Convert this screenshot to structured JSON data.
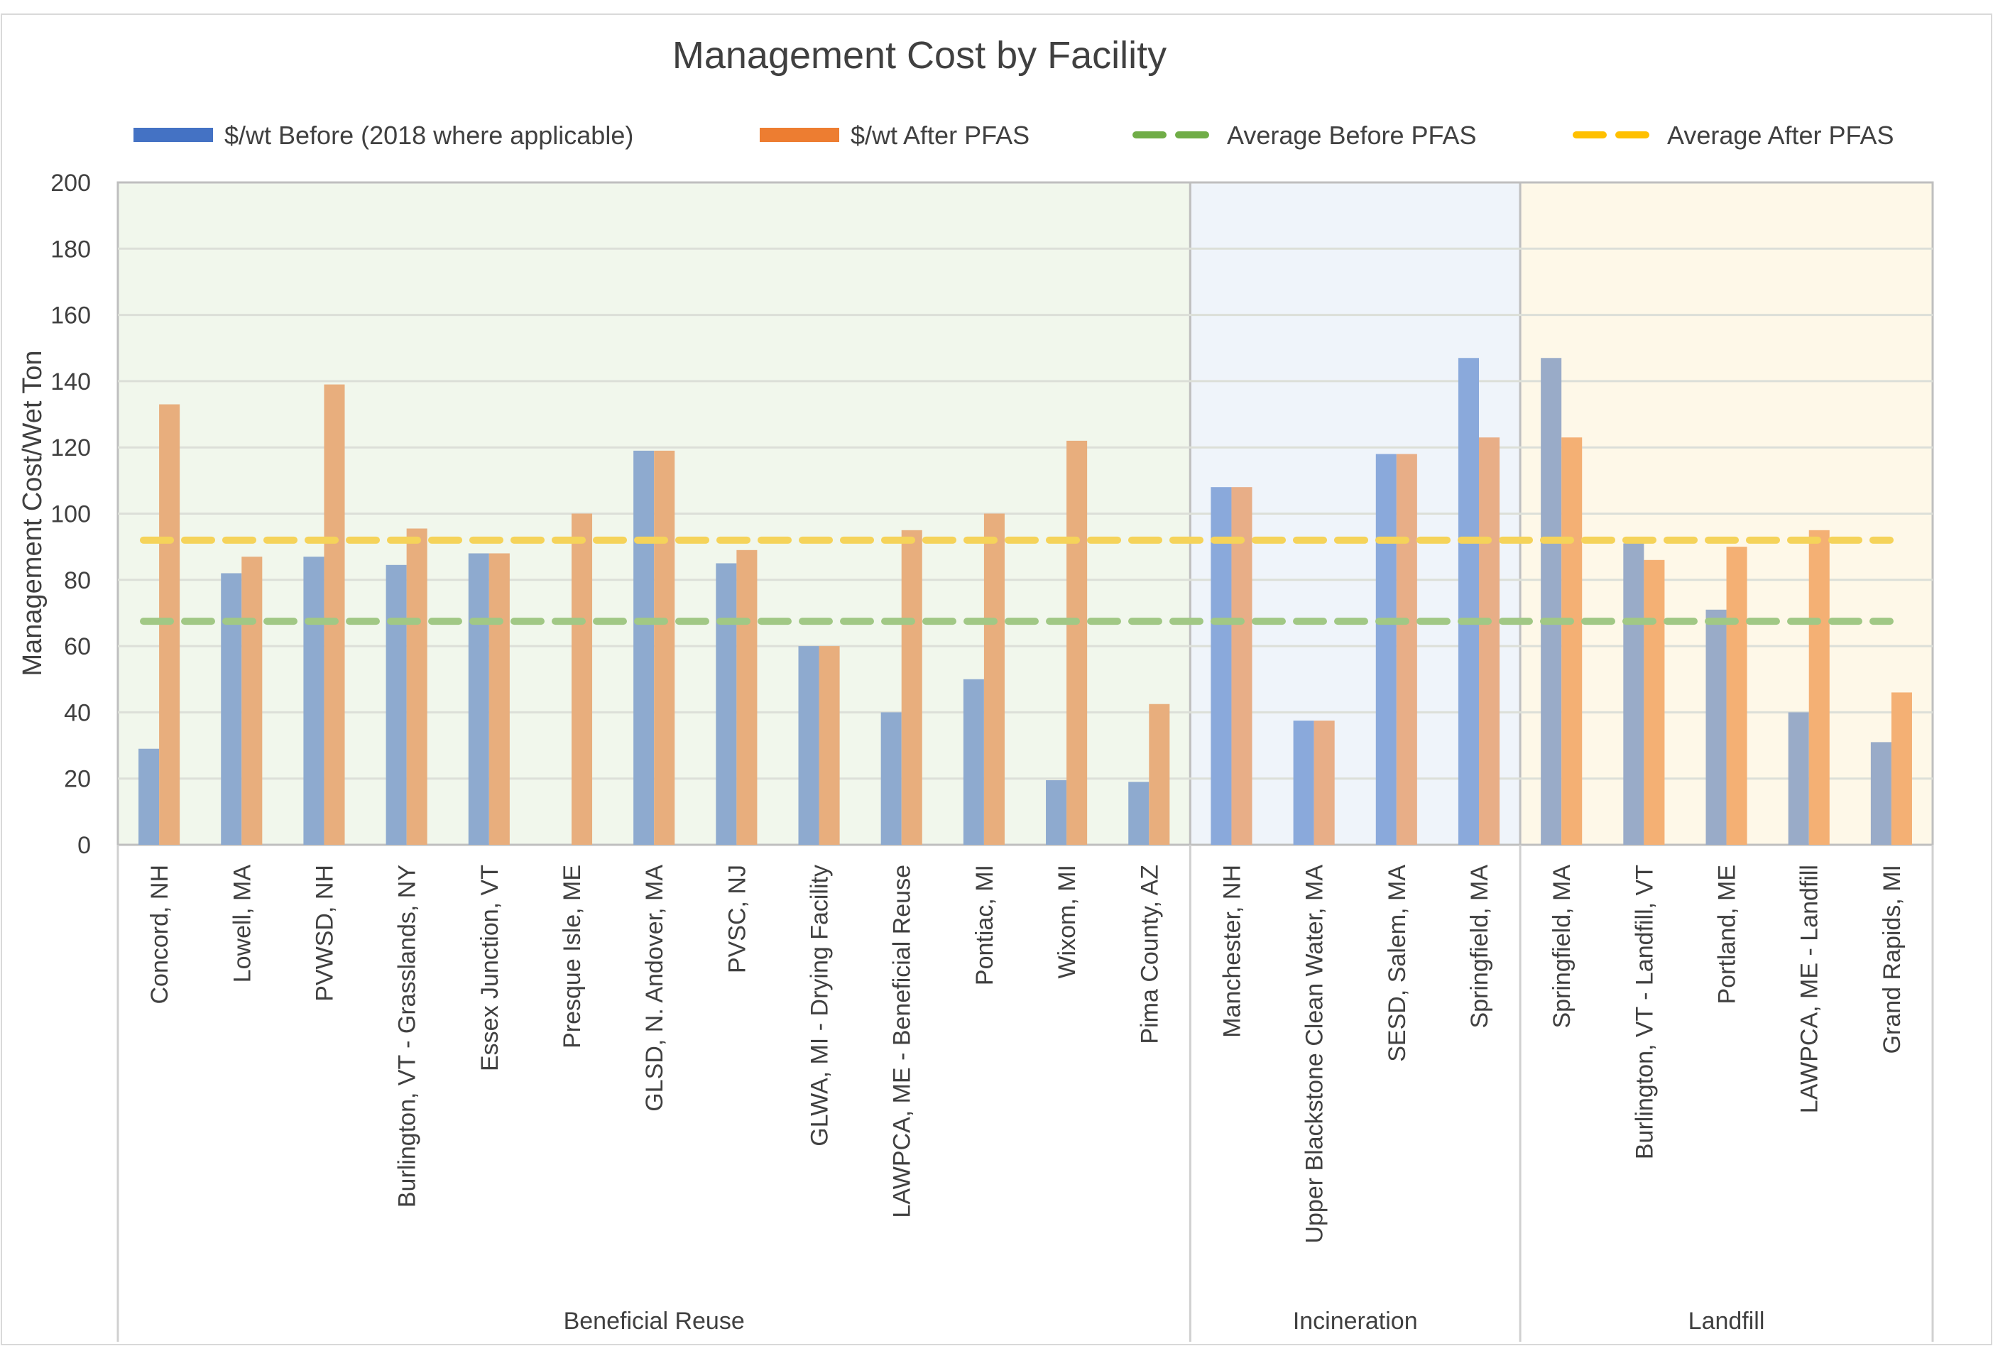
{
  "chart_data": {
    "type": "bar",
    "title": "Management Cost by Facility",
    "ylabel": "Management Cost/Wet Ton",
    "xlabel": "",
    "ylim": [
      0,
      200
    ],
    "yticks": [
      0,
      20,
      40,
      60,
      80,
      100,
      120,
      140,
      160,
      180,
      200
    ],
    "grid": true,
    "legend_position": "top",
    "legend": [
      {
        "label": "$/wt Before (2018 where applicable)",
        "type": "bar",
        "color": "#4472C4"
      },
      {
        "label": "$/wt After PFAS",
        "type": "bar",
        "color": "#ED7D31"
      },
      {
        "label": "Average Before PFAS",
        "type": "dashed-line",
        "color": "#70AD47"
      },
      {
        "label": "Average After PFAS",
        "type": "dashed-line",
        "color": "#FFC000"
      }
    ],
    "groups": [
      {
        "name": "Beneficial Reuse",
        "background": "#F1F7EC",
        "before_color": "#8EAACF",
        "after_color": "#E8AE7D",
        "categories": [
          "Concord, NH",
          "Lowell, MA",
          "PVWSD, NH",
          "Burlington, VT - Grasslands, NY",
          "Essex Junction, VT",
          "Presque Isle, ME",
          "GLSD, N. Andover, MA",
          "PVSC, NJ",
          "GLWA, MI - Drying Facility",
          "LAWPCA, ME - Beneficial Reuse",
          "Pontiac, MI",
          "Wixom, MI",
          "Pima County, AZ"
        ],
        "before": [
          29,
          82,
          87,
          84.5,
          88,
          null,
          119,
          85,
          60,
          40,
          50,
          19.5,
          19
        ],
        "after": [
          133,
          87,
          139,
          95.5,
          88,
          100,
          119,
          89,
          60,
          95,
          100,
          122,
          42.5
        ]
      },
      {
        "name": "Incineration",
        "background": "#EFF4FA",
        "before_color": "#8AA9DB",
        "after_color": "#E8AE87",
        "categories": [
          "Manchester, NH",
          "Upper Blackstone Clean Water, MA",
          "SESD, Salem, MA",
          "Springfield, MA"
        ],
        "before": [
          108,
          37.5,
          118,
          147
        ],
        "after": [
          108,
          37.5,
          118,
          123
        ]
      },
      {
        "name": "Landfill",
        "background": "#FEF8E8",
        "before_color": "#99ABC8",
        "after_color": "#F4B074",
        "categories": [
          "Springfield, MA",
          "Burlington, VT - Landfill, VT",
          "Portland, ME",
          "LAWPCA, ME - Landfill",
          "Grand Rapids, MI"
        ],
        "before": [
          147,
          91,
          71,
          40,
          31
        ],
        "after": [
          123,
          86,
          90,
          95,
          46
        ]
      }
    ],
    "average_before_pfas": 67.5,
    "average_after_pfas": 92,
    "average_before_color": "#A1C885",
    "average_after_color": "#F5D35A"
  }
}
